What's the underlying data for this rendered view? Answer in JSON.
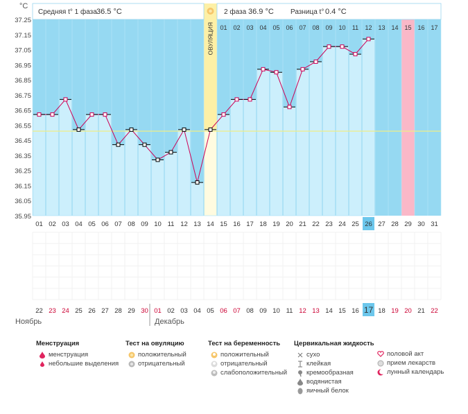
{
  "chart_data": {
    "type": "line",
    "unit_label": "°C",
    "header": {
      "phase1_label": "Средняя t° 1 фаза",
      "phase1_value": "36.5 °C",
      "phase2_label": "2 фаза",
      "phase2_value": "36.9 °C",
      "diff_label": "Разница t°",
      "diff_value": "0.4 °C"
    },
    "y_ticks": [
      "37.25",
      "37.15",
      "37.05",
      "36.95",
      "36.85",
      "36.75",
      "36.65",
      "36.55",
      "36.45",
      "36.35",
      "36.25",
      "36.15",
      "36.05",
      "35.95"
    ],
    "ylim": [
      35.95,
      37.25
    ],
    "cycle_days": [
      "01",
      "02",
      "03",
      "04",
      "05",
      "06",
      "07",
      "08",
      "09",
      "10",
      "11",
      "12",
      "13",
      "14",
      "15",
      "16",
      "17",
      "18",
      "19",
      "20",
      "21",
      "22",
      "23",
      "24",
      "25",
      "26",
      "27",
      "28",
      "29",
      "30",
      "31"
    ],
    "post_ovulation_days": [
      "01",
      "02",
      "03",
      "04",
      "05",
      "06",
      "07",
      "08",
      "09",
      "10",
      "11",
      "12",
      "13",
      "14",
      "15",
      "16",
      "17"
    ],
    "temperatures": [
      36.62,
      36.62,
      36.72,
      36.52,
      36.62,
      36.62,
      36.42,
      36.52,
      36.42,
      36.32,
      36.37,
      36.52,
      36.17,
      36.52,
      36.62,
      36.72,
      36.72,
      36.92,
      36.9,
      36.67,
      36.92,
      36.97,
      37.07,
      37.07,
      37.02,
      37.12
    ],
    "cover_line": 36.51,
    "ovulation_day_index": 14,
    "ovulation_label": "ОВУЛЯЦИЯ",
    "current_day": "26",
    "highlight_day_index": 29,
    "calendar_days": [
      "22",
      "23",
      "24",
      "25",
      "26",
      "27",
      "28",
      "29",
      "30",
      "01",
      "02",
      "03",
      "04",
      "05",
      "06",
      "07",
      "08",
      "09",
      "10",
      "11",
      "12",
      "13",
      "14",
      "15",
      "16",
      "17",
      "18",
      "19",
      "20",
      "21",
      "22"
    ],
    "weekend_indices": [
      1,
      2,
      8,
      9,
      14,
      15,
      20,
      21,
      27,
      28,
      30
    ],
    "today_calendar": "17",
    "month1": "Ноябрь",
    "month2": "Декабрь",
    "colors": {
      "pre_bg": "#96d9f2",
      "bar": "#cceffc",
      "line": "#cc0055",
      "ovulation": "#fdf0a6",
      "highlight": "#fab8c8",
      "cover": "#eeee88",
      "weekend": "#cc0033"
    }
  },
  "legend": {
    "menstruation": {
      "title": "Менструация",
      "items": [
        "менструация",
        "небольшие выделения"
      ]
    },
    "ovulation_test": {
      "title": "Тест на овуляцию",
      "items": [
        "положительный",
        "отрицательный"
      ]
    },
    "pregnancy_test": {
      "title": "Тест на беременность",
      "items": [
        "положительный",
        "отрицательный",
        "слабоположительный"
      ]
    },
    "cervical": {
      "title": "Цервикальная жидкость",
      "items": [
        "сухо",
        "клейкая",
        "кремообразная",
        "водянистая",
        "яичный белок"
      ]
    },
    "other": {
      "items": [
        "половой акт",
        "прием лекарств",
        "лунный календарь"
      ]
    }
  }
}
